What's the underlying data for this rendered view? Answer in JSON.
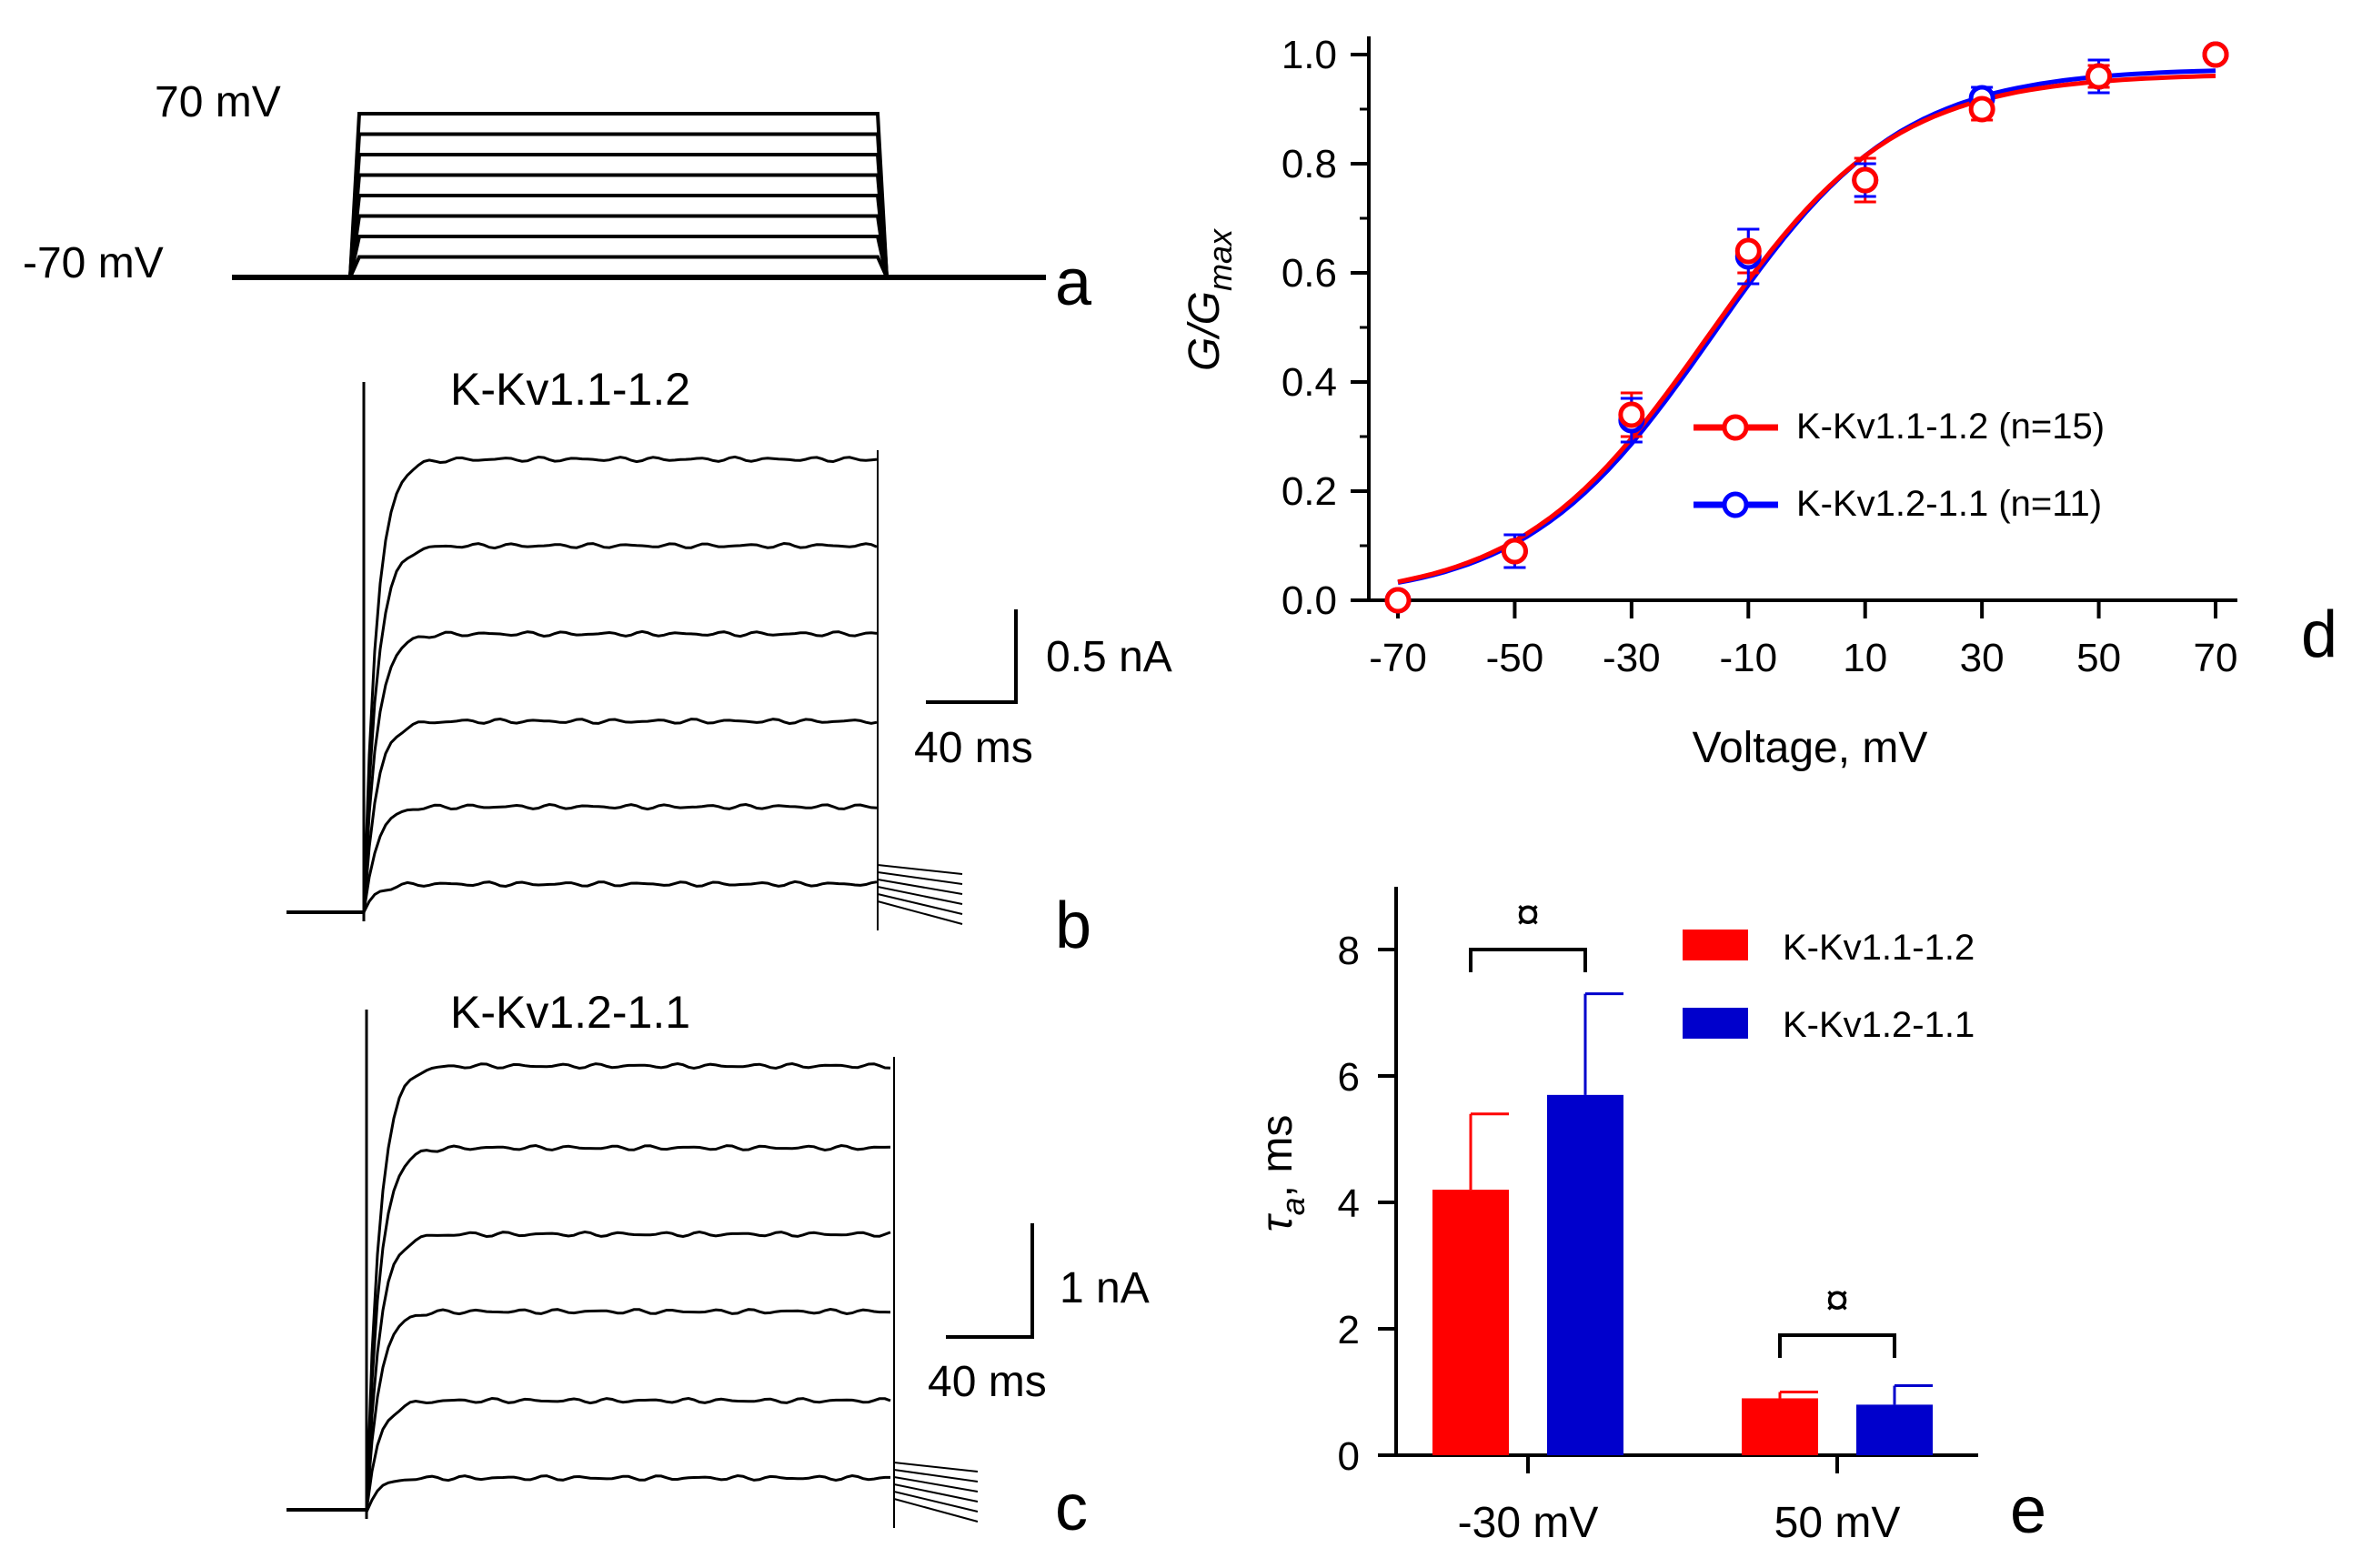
{
  "panels": {
    "a": {
      "letter": "a",
      "top_label": "70 mV",
      "bottom_label": "-70 mV",
      "step_count": 8
    },
    "b": {
      "letter": "b",
      "title": "K-Kv1.1-1.2",
      "scale_y": "0.5 nA",
      "scale_x": "40 ms"
    },
    "c": {
      "letter": "c",
      "title": "K-Kv1.2-1.1",
      "scale_y": "1 nA",
      "scale_x": "40 ms"
    },
    "d": {
      "letter": "d"
    },
    "e": {
      "letter": "e"
    }
  },
  "colors": {
    "red": "#ff0000",
    "blue": "#0000ff",
    "bar_red": "#ff0000",
    "bar_blue": "#0000cc"
  },
  "chart_data": [
    {
      "id": "d",
      "type": "scatter",
      "title": "",
      "xlabel": "Voltage, mV",
      "ylabel_main": "G/G",
      "ylabel_sub": "max",
      "xlim": [
        -75,
        75
      ],
      "ylim": [
        0,
        1.05
      ],
      "x_ticks": [
        -70,
        -50,
        -30,
        -10,
        10,
        30,
        50,
        70
      ],
      "y_ticks": [
        0.0,
        0.2,
        0.4,
        0.6,
        0.8,
        1.0
      ],
      "y_tick_labels": [
        "0.0",
        "0.2",
        "0.4",
        "0.6",
        "0.8",
        "1.0"
      ],
      "legend_position": "center-right",
      "series": [
        {
          "name": "K-Kv1.1-1.2 (n=15)",
          "color": "#ff0000",
          "x": [
            -70,
            -50,
            -30,
            -10,
            10,
            30,
            50,
            70
          ],
          "y": [
            0.0,
            0.09,
            0.34,
            0.64,
            0.77,
            0.9,
            0.96,
            1.0
          ],
          "err": [
            0.0,
            0.03,
            0.04,
            0.04,
            0.04,
            0.02,
            0.02,
            0.0
          ],
          "fit": {
            "v_half": -17,
            "slope": 16,
            "top": 0.965
          }
        },
        {
          "name": "K-Kv1.2-1.1 (n=11)",
          "color": "#0000ff",
          "x": [
            -70,
            -50,
            -30,
            -10,
            10,
            30,
            50,
            70
          ],
          "y": [
            0.0,
            0.09,
            0.33,
            0.63,
            0.77,
            0.92,
            0.96,
            1.0
          ],
          "err": [
            0.0,
            0.03,
            0.04,
            0.05,
            0.03,
            0.02,
            0.03,
            0.0
          ],
          "fit": {
            "v_half": -16,
            "slope": 16,
            "top": 0.975
          }
        }
      ]
    },
    {
      "id": "e",
      "type": "bar",
      "title": "",
      "xlabel": "",
      "ylabel_main": "τ",
      "ylabel_sub": "a",
      "ylabel_unit": ", ms",
      "categories": [
        "-30 mV",
        "50 mV"
      ],
      "ylim": [
        0,
        9
      ],
      "y_ticks": [
        0,
        2,
        4,
        6,
        8
      ],
      "legend_position": "top-right",
      "series": [
        {
          "name": "K-Kv1.1-1.2",
          "color": "#ff0000",
          "values": [
            4.2,
            0.9
          ],
          "err": [
            1.2,
            0.1
          ]
        },
        {
          "name": "K-Kv1.2-1.1",
          "color": "#0000cc",
          "values": [
            5.7,
            0.8
          ],
          "err": [
            1.6,
            0.3
          ]
        }
      ],
      "significance_marks": [
        "¤",
        "¤"
      ]
    }
  ]
}
